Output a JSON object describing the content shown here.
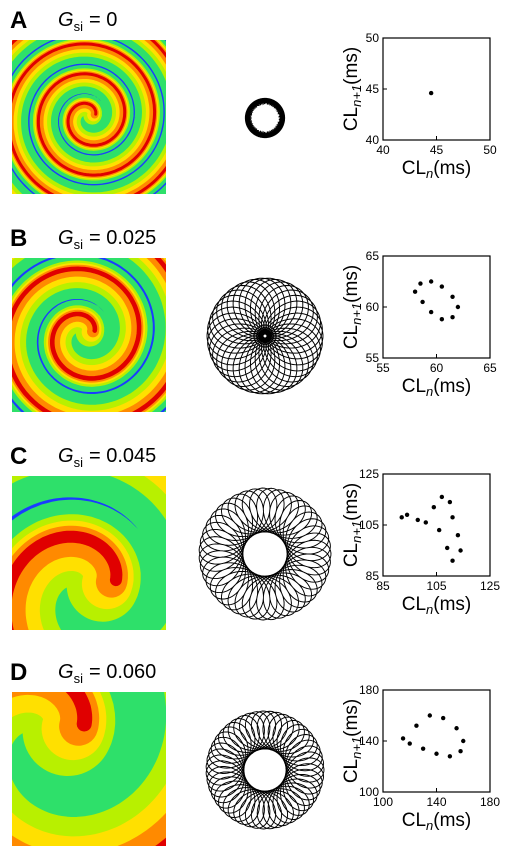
{
  "x_label": {
    "base": "CL",
    "sub": "n",
    "unit": "(ms)"
  },
  "y_label": {
    "base": "CL",
    "sub": "n+1",
    "unit": "(ms)"
  },
  "panels": [
    {
      "label": "A",
      "parameter": {
        "symbol": "G",
        "sub": "si",
        "text": "= 0"
      },
      "chart_data": {
        "type": "scatter",
        "x": [
          44.5
        ],
        "y": [
          44.6
        ],
        "xlim": [
          40,
          50
        ],
        "ylim": [
          40,
          50
        ],
        "xticks": [
          40,
          45,
          50
        ],
        "yticks": [
          40,
          45,
          50
        ]
      }
    },
    {
      "label": "B",
      "parameter": {
        "symbol": "G",
        "sub": "si",
        "text": "= 0.025"
      },
      "chart_data": {
        "type": "scatter",
        "x": [
          58,
          58.5,
          59.5,
          60.5,
          61.5,
          62,
          61.5,
          60.5,
          59.5,
          58.7
        ],
        "y": [
          61.5,
          62.3,
          62.5,
          62,
          61,
          60,
          59,
          58.8,
          59.5,
          60.5
        ],
        "xlim": [
          55,
          65
        ],
        "ylim": [
          55,
          65
        ],
        "xticks": [
          55,
          60,
          65
        ],
        "yticks": [
          55,
          60,
          65
        ]
      }
    },
    {
      "label": "C",
      "parameter": {
        "symbol": "G",
        "sub": "si",
        "text": "= 0.045"
      },
      "chart_data": {
        "type": "scatter",
        "x": [
          92,
          98,
          104,
          107,
          110,
          111,
          113,
          114,
          111,
          109,
          106,
          101,
          94
        ],
        "y": [
          108,
          107,
          112,
          116,
          114,
          108,
          101,
          95,
          91,
          96,
          103,
          106,
          109
        ],
        "xlim": [
          85,
          125
        ],
        "ylim": [
          85,
          125
        ],
        "xticks": [
          85,
          105,
          125
        ],
        "yticks": [
          85,
          105,
          125
        ]
      }
    },
    {
      "label": "D",
      "parameter": {
        "symbol": "G",
        "sub": "si",
        "text": "= 0.060"
      },
      "chart_data": {
        "type": "scatter",
        "x": [
          115,
          125,
          135,
          145,
          155,
          160,
          158,
          150,
          140,
          130,
          120
        ],
        "y": [
          142,
          152,
          160,
          158,
          150,
          140,
          132,
          128,
          130,
          134,
          138
        ],
        "xlim": [
          100,
          180
        ],
        "ylim": [
          100,
          180
        ],
        "xticks": [
          100,
          140,
          180
        ],
        "yticks": [
          100,
          140,
          180
        ]
      }
    }
  ]
}
